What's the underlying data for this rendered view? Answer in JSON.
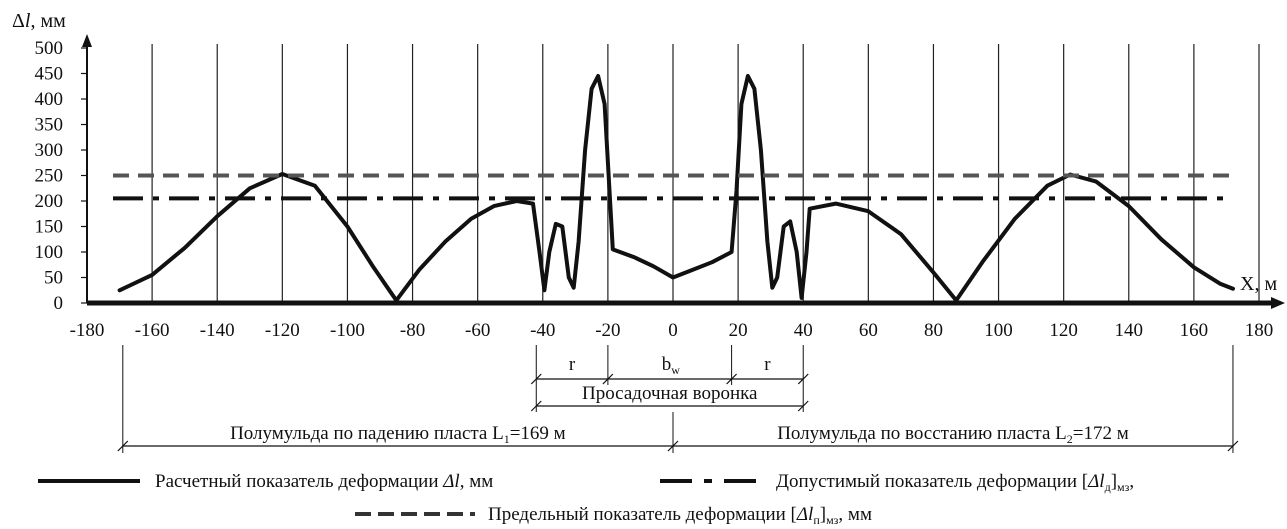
{
  "chart_data": {
    "type": "line",
    "ylabel": "Δl, мм",
    "xlabel": "X, м",
    "xlim": [
      -180,
      180
    ],
    "ylim": [
      0,
      500
    ],
    "grid": "vertical",
    "x_ticks": [
      -180,
      -160,
      -140,
      -120,
      -100,
      -80,
      -60,
      -40,
      -20,
      0,
      20,
      40,
      60,
      80,
      100,
      120,
      140,
      160,
      180
    ],
    "y_ticks": [
      0,
      50,
      100,
      150,
      200,
      250,
      300,
      350,
      400,
      450,
      500
    ],
    "series": [
      {
        "name": "Расчетный показатель деформации Δl, мм",
        "style": "solid",
        "color": "#111111",
        "points": [
          [
            -170,
            25
          ],
          [
            -160,
            55
          ],
          [
            -150,
            108
          ],
          [
            -140,
            170
          ],
          [
            -130,
            225
          ],
          [
            -120,
            253
          ],
          [
            -110,
            230
          ],
          [
            -100,
            150
          ],
          [
            -92,
            70
          ],
          [
            -85,
            5
          ],
          [
            -78,
            65
          ],
          [
            -70,
            120
          ],
          [
            -62,
            165
          ],
          [
            -55,
            190
          ],
          [
            -48,
            200
          ],
          [
            -43,
            195
          ],
          [
            -41,
            100
          ],
          [
            -39.5,
            25
          ],
          [
            -38,
            100
          ],
          [
            -36,
            155
          ],
          [
            -34,
            150
          ],
          [
            -32,
            50
          ],
          [
            -30.5,
            30
          ],
          [
            -29,
            120
          ],
          [
            -27,
            300
          ],
          [
            -25,
            420
          ],
          [
            -23,
            445
          ],
          [
            -21,
            390
          ],
          [
            -19.5,
            220
          ],
          [
            -18.5,
            105
          ],
          [
            -12,
            90
          ],
          [
            -6,
            72
          ],
          [
            0,
            50
          ],
          [
            6,
            65
          ],
          [
            12,
            80
          ],
          [
            18,
            100
          ],
          [
            19.5,
            220
          ],
          [
            21,
            390
          ],
          [
            23,
            445
          ],
          [
            25,
            420
          ],
          [
            27,
            300
          ],
          [
            29,
            120
          ],
          [
            30.5,
            30
          ],
          [
            32,
            50
          ],
          [
            34,
            150
          ],
          [
            36,
            160
          ],
          [
            38,
            100
          ],
          [
            39.5,
            10
          ],
          [
            41,
            100
          ],
          [
            42,
            185
          ],
          [
            50,
            195
          ],
          [
            60,
            180
          ],
          [
            70,
            135
          ],
          [
            80,
            60
          ],
          [
            87,
            5
          ],
          [
            95,
            80
          ],
          [
            105,
            165
          ],
          [
            115,
            230
          ],
          [
            122,
            252
          ],
          [
            130,
            238
          ],
          [
            140,
            190
          ],
          [
            150,
            125
          ],
          [
            160,
            70
          ],
          [
            168,
            38
          ],
          [
            172,
            28
          ]
        ]
      },
      {
        "name": "Допустимый показатель деформации [Δl_д]мз, мм",
        "style": "dashdot",
        "color": "#111111",
        "values": [
          [
            -172,
            205
          ],
          [
            172,
            205
          ]
        ]
      },
      {
        "name": "Предельный показатель деформации [Δl_п]мз, мм",
        "style": "dashed",
        "color": "#555555",
        "values": [
          [
            -172,
            250
          ],
          [
            172,
            250
          ]
        ]
      }
    ],
    "annotations": {
      "zone_labels": [
        "r",
        "b",
        "r"
      ],
      "bw_sub": "w",
      "zone_bounds": [
        -42,
        -20,
        18,
        40
      ],
      "subsidence_label": "Просадочная воронка",
      "half_trough_left": {
        "label": "Полумульда по падению пласта L",
        "sub": "1",
        "value": "=169 м",
        "bounds": [
          -169,
          0
        ]
      },
      "half_trough_right": {
        "label": "Полумульда по восстанию пласта L",
        "sub": "2",
        "value": "=172 м",
        "bounds": [
          0,
          172
        ]
      }
    },
    "legend": [
      {
        "style": "solid",
        "text_before": "Расчетный показатель деформации ",
        "ital": "Δl",
        "text_after": ", мм"
      },
      {
        "style": "dashdot",
        "text_before": "Допустимый показатель деформации [",
        "ital": "Δl",
        "sub": "д",
        "text_after": "]",
        "sub2": "мз",
        "tail": ","
      },
      {
        "style": "dashed",
        "text_before": "Предельный показатель деформации [",
        "ital": "Δl",
        "sub": "п",
        "text_after": "]",
        "sub2": "мз",
        "tail": ", мм"
      }
    ]
  }
}
